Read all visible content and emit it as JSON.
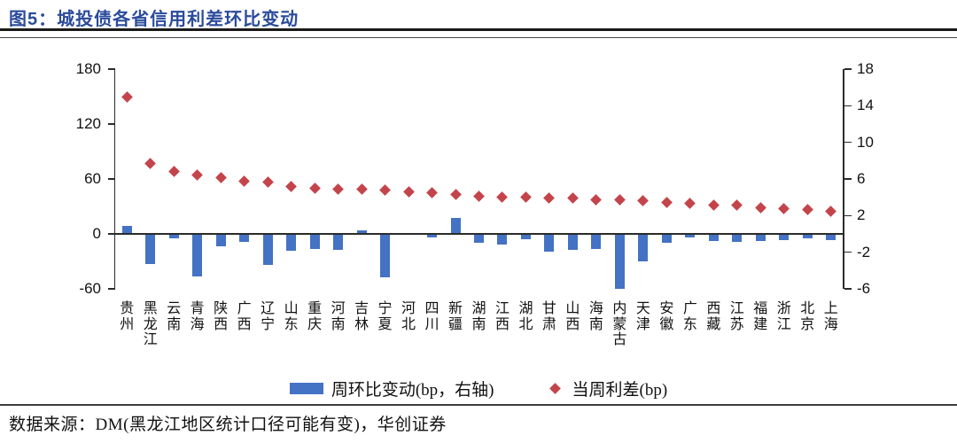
{
  "title": "图5：城投债各省信用利差环比变动",
  "source": "数据来源：DM(黑龙江地区统计口径可能有变)，华创证券",
  "legend": {
    "bar_label": "周环比变动(bp，右轴)",
    "diamond_label": "当周利差(bp)"
  },
  "colors": {
    "title_blue": "#2B4B9B",
    "bar_blue": "#4472C4",
    "diamond_red": "#C4444B",
    "axis_black": "#2b2b2b"
  },
  "chart_data": {
    "type": "bar",
    "title": "城投债各省信用利差环比变动",
    "categories": [
      "贵州",
      "黑龙江",
      "云南",
      "青海",
      "陕西",
      "广西",
      "辽宁",
      "山东",
      "重庆",
      "河南",
      "吉林",
      "宁夏",
      "河北",
      "四川",
      "新疆",
      "湖南",
      "江西",
      "湖北",
      "甘肃",
      "山西",
      "海南",
      "内蒙古",
      "天津",
      "安徽",
      "广东",
      "西藏",
      "江苏",
      "福建",
      "浙江",
      "北京",
      "上海"
    ],
    "series": [
      {
        "name": "周环比变动(bp，右轴)",
        "type": "bar",
        "axis": "right",
        "values": [
          0.9,
          -3.3,
          -0.5,
          -4.6,
          -1.4,
          -0.9,
          -3.4,
          -1.8,
          -1.6,
          -1.7,
          0.4,
          -4.7,
          -0.1,
          -0.4,
          1.7,
          -1.0,
          -1.2,
          -0.6,
          -1.9,
          -1.7,
          -1.6,
          -6.0,
          -3.0,
          -1.0,
          -0.4,
          -0.8,
          -0.9,
          -0.8,
          -0.7,
          -0.5,
          -0.7
        ]
      },
      {
        "name": "当周利差(bp)",
        "type": "scatter",
        "marker": "diamond",
        "axis": "left",
        "values": [
          150,
          77,
          68,
          64,
          61,
          58,
          57,
          52,
          50,
          49,
          49,
          48,
          46,
          45,
          43,
          41,
          40,
          40,
          39,
          39,
          37,
          37,
          36,
          34,
          33,
          31,
          31,
          29,
          28,
          27,
          25
        ]
      }
    ],
    "left_axis": {
      "min": -60,
      "max": 180,
      "ticks": [
        180,
        120,
        60,
        0,
        -60
      ]
    },
    "right_axis": {
      "min": -6,
      "max": 18,
      "ticks": [
        18,
        14,
        10,
        6,
        2,
        -2,
        -6
      ]
    },
    "grid": false,
    "legend_position": "bottom"
  }
}
